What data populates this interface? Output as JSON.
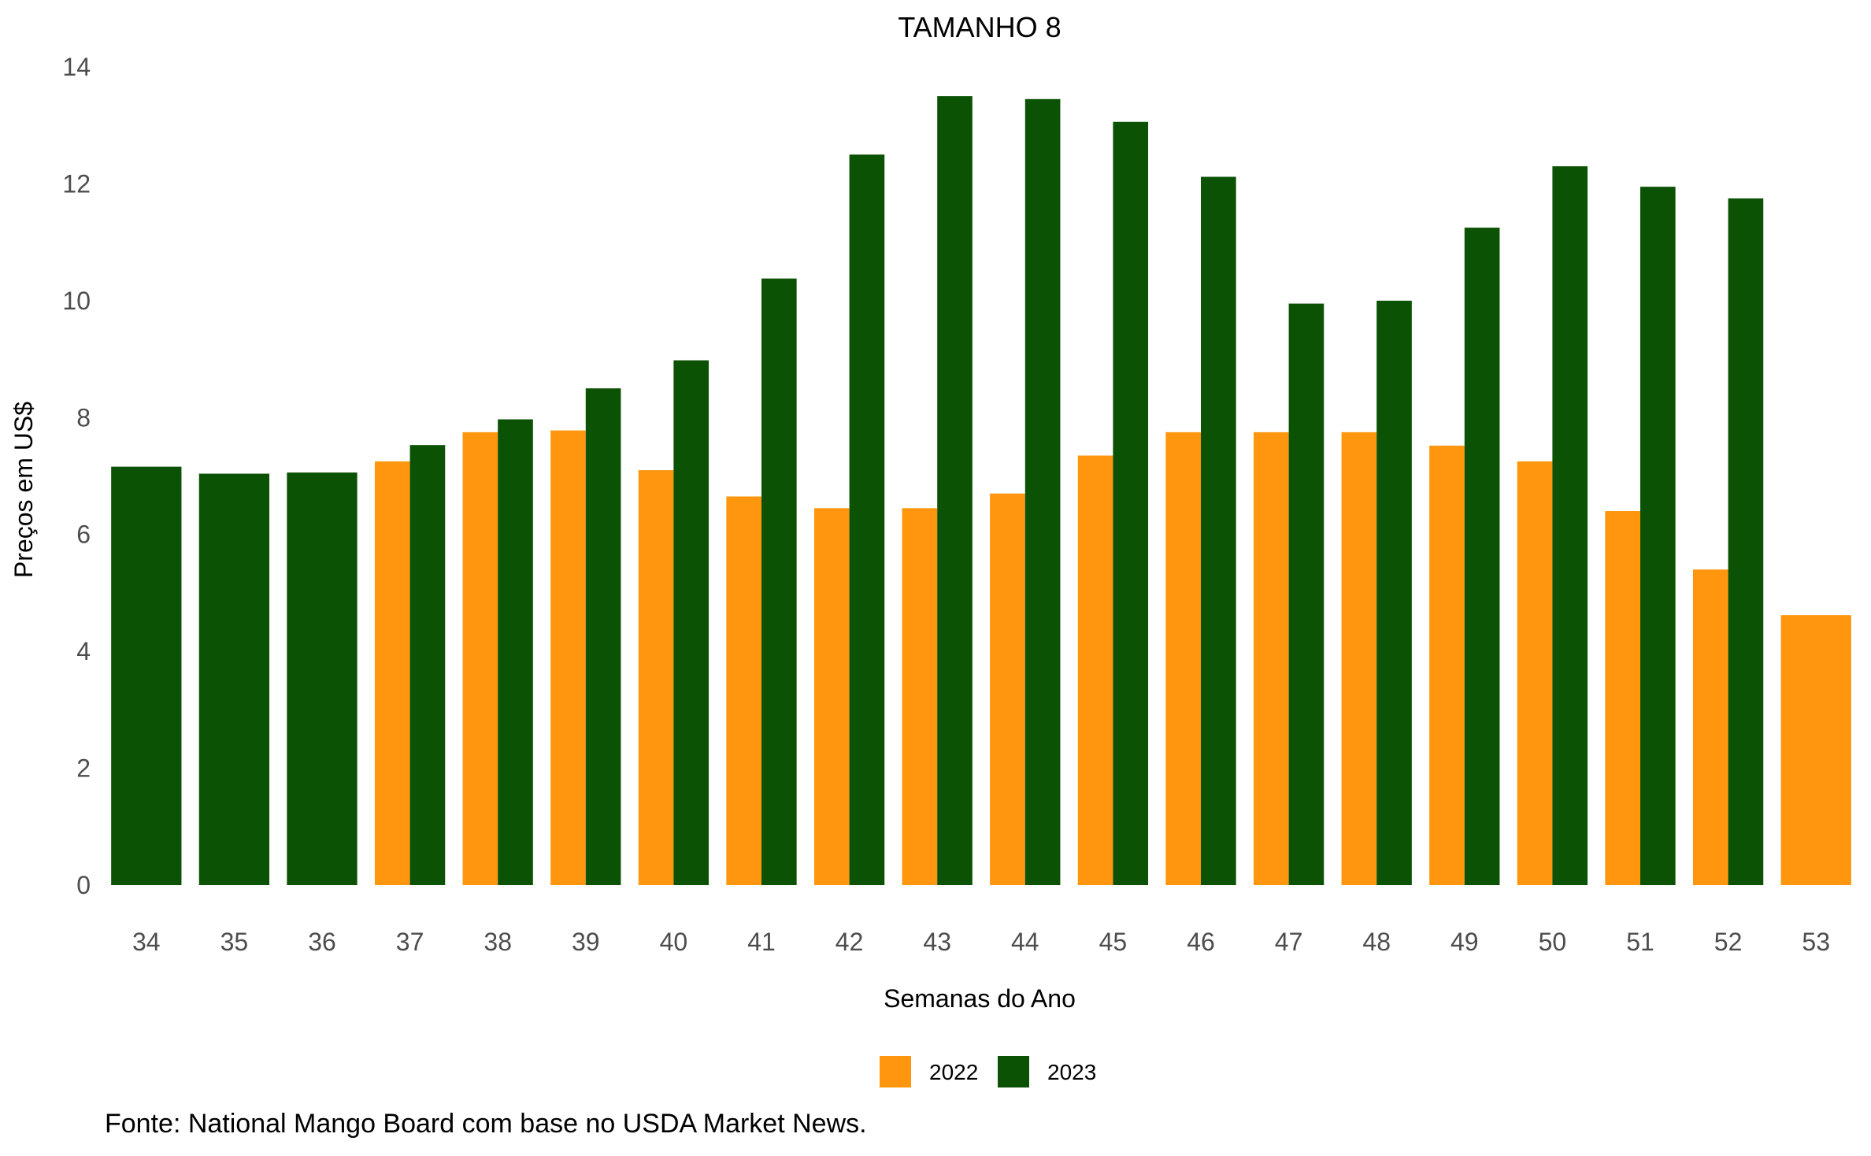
{
  "chart_data": {
    "type": "bar",
    "title": "TAMANHO 8",
    "xlabel": "Semanas do Ano",
    "ylabel": "Preços em US$",
    "ylim": [
      0,
      14
    ],
    "yticks": [
      0,
      2,
      4,
      6,
      8,
      10,
      12,
      14
    ],
    "categories": [
      "34",
      "35",
      "36",
      "37",
      "38",
      "39",
      "40",
      "41",
      "42",
      "43",
      "44",
      "45",
      "46",
      "47",
      "48",
      "49",
      "50",
      "51",
      "52",
      "53"
    ],
    "series": [
      {
        "name": "2022",
        "color": "#ff960d",
        "values": [
          null,
          null,
          null,
          7.25,
          7.75,
          7.78,
          7.1,
          6.65,
          6.45,
          6.45,
          6.7,
          7.35,
          7.75,
          7.75,
          7.75,
          7.52,
          7.25,
          6.4,
          5.4,
          4.62
        ]
      },
      {
        "name": "2023",
        "color": "#0c5204",
        "values": [
          7.16,
          7.04,
          7.06,
          7.53,
          7.97,
          8.5,
          8.98,
          10.38,
          12.5,
          13.5,
          13.45,
          13.06,
          12.12,
          9.95,
          10.0,
          11.25,
          12.3,
          11.95,
          11.75,
          null
        ]
      }
    ],
    "grid": false,
    "legend_position": "bottom"
  },
  "source_note": "Fonte: National Mango Board com base no USDA Market News."
}
